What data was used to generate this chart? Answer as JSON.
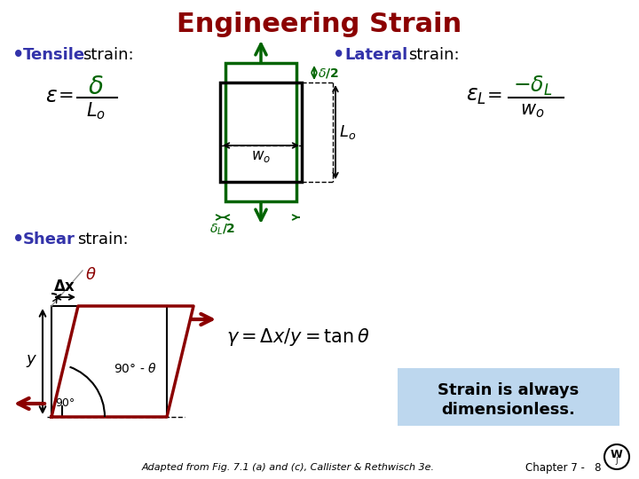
{
  "title": "Engineering Strain",
  "title_color": "#8B0000",
  "bg_color": "#FFFFFF",
  "dark_green": "#006400",
  "dark_red": "#8B0000",
  "blue": "#3333AA",
  "black": "#000000",
  "footer_text": "Adapted from Fig. 7.1 (a) and (c), Callister & Rethwisch 3e.",
  "chapter_text": "Chapter 7 -   8"
}
